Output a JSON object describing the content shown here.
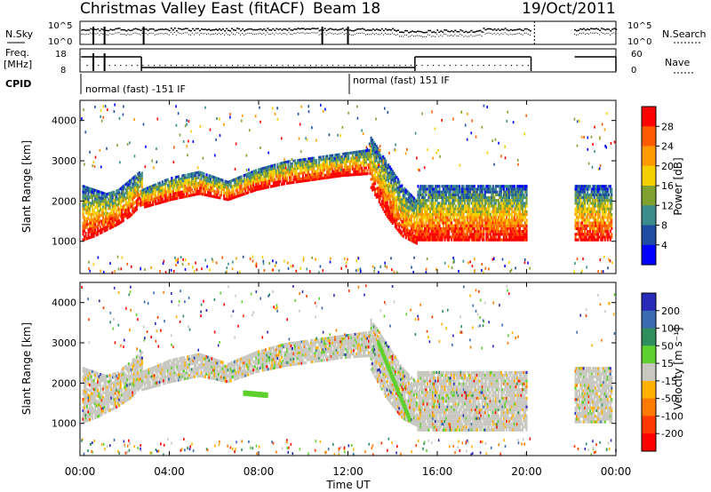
{
  "header": {
    "title": "Christmas Valley East (fitACF)",
    "beam": "Beam 18",
    "date": "19/Oct/2011"
  },
  "left_labels": {
    "nsky": "N.Sky",
    "freq_line1": "Freq.",
    "freq_line2": "[MHz]",
    "cpid": "CPID"
  },
  "right_labels": {
    "nsearch": "N.Search",
    "nave": "Nave"
  },
  "noise_panel": {
    "left_ticks": [
      "10^5",
      "10^0"
    ],
    "right_ticks": [
      "10^5",
      "10^0"
    ]
  },
  "freq_panel": {
    "left_ticks": [
      "18",
      "8"
    ],
    "right_ticks": [
      "60",
      "0"
    ]
  },
  "cpid_labels": [
    {
      "text": "normal (fast) -151 IF",
      "start_hour": 0
    },
    {
      "text": "normal (fast) 151 IF",
      "start_hour": 12
    }
  ],
  "power_colorbar": {
    "label": "Power [dB]",
    "ticks": [
      "28",
      "24",
      "20",
      "16",
      "12",
      "8",
      "4"
    ],
    "colors": [
      "#ff0000",
      "#ff5a00",
      "#ff9a00",
      "#f5d000",
      "#80a030",
      "#3c8c8c",
      "#1e4ca0",
      "#0000ff"
    ]
  },
  "velocity_colorbar": {
    "label": "Velocity [m s⁻¹]",
    "ticks": [
      "200",
      "100",
      "50",
      "15",
      "-15",
      "-50",
      "-100",
      "-200"
    ],
    "colors": [
      "#2a2ab8",
      "#3a6ab0",
      "#2e8e5e",
      "#5fd02e",
      "#c8c8c0",
      "#ffb000",
      "#ff7a00",
      "#ff3a00",
      "#ff0000"
    ]
  },
  "chart_data": [
    {
      "type": "heatmap",
      "title": "Power",
      "ylabel": "Slant Range [km]",
      "yticks": [
        "1000",
        "2000",
        "3000",
        "4000"
      ],
      "ylim": [
        200,
        4500
      ],
      "xlim": [
        0,
        24
      ],
      "echo_bands": [
        {
          "start": 0.1,
          "end": 2.75,
          "lower_km": [
            1000,
            1100,
            1250,
            1400,
            1600,
            1900
          ],
          "upper_km": [
            2400,
            2300,
            2200,
            2300,
            2550,
            2800
          ]
        },
        {
          "start": 2.75,
          "end": 13.0,
          "lower_km": [
            1800,
            2000,
            2150,
            2000,
            2250,
            2400,
            2500,
            2600,
            2650
          ],
          "upper_km": [
            2300,
            2600,
            2750,
            2500,
            2800,
            3000,
            3100,
            3200,
            3300
          ]
        },
        {
          "start": 13.0,
          "end": 15.1,
          "lower_km": [
            2300,
            1600,
            1100,
            900
          ],
          "upper_km": [
            3600,
            3000,
            2400,
            2000
          ]
        },
        {
          "start": 15.1,
          "end": 20.0,
          "lower_km": [
            1000,
            1000,
            1000
          ],
          "upper_km": [
            2400,
            2400,
            2400
          ]
        },
        {
          "start": 22.15,
          "end": 23.8,
          "lower_km": [
            1000,
            1000
          ],
          "upper_km": [
            2400,
            2400
          ]
        }
      ]
    },
    {
      "type": "heatmap",
      "title": "Velocity",
      "ylabel": "Slant Range [km]",
      "yticks": [
        "1000",
        "2000",
        "3000",
        "4000"
      ],
      "ylim": [
        200,
        4500
      ],
      "xlim": [
        0,
        24
      ],
      "xlabel": "Time UT",
      "xticks": [
        "00:00",
        "04:00",
        "08:00",
        "12:00",
        "16:00",
        "20:00",
        "00:00"
      ],
      "echo_bands": [
        {
          "start": 0.1,
          "end": 2.75,
          "lower_km": [
            1000,
            1100,
            1250,
            1400,
            1600,
            1900
          ],
          "upper_km": [
            2400,
            2300,
            2200,
            2300,
            2550,
            2800
          ]
        },
        {
          "start": 2.75,
          "end": 13.0,
          "lower_km": [
            1800,
            2000,
            2150,
            2000,
            2250,
            2400,
            2500,
            2600,
            2650
          ],
          "upper_km": [
            2300,
            2600,
            2750,
            2500,
            2800,
            3000,
            3100,
            3200,
            3300
          ]
        },
        {
          "start": 13.0,
          "end": 15.1,
          "lower_km": [
            2300,
            1600,
            1100,
            900
          ],
          "upper_km": [
            3600,
            3000,
            2400,
            2000
          ]
        },
        {
          "start": 15.1,
          "end": 20.0,
          "lower_km": [
            800,
            800,
            800
          ],
          "upper_km": [
            2300,
            2300,
            2300
          ]
        },
        {
          "start": 22.15,
          "end": 23.8,
          "lower_km": [
            1000,
            1000
          ],
          "upper_km": [
            2400,
            2400
          ]
        }
      ],
      "green_streaks": [
        {
          "t": [
            13.3,
            14.7
          ],
          "km": [
            3000,
            1100
          ]
        },
        {
          "t": [
            7.3,
            8.3
          ],
          "km": [
            1750,
            1700
          ]
        }
      ]
    }
  ]
}
